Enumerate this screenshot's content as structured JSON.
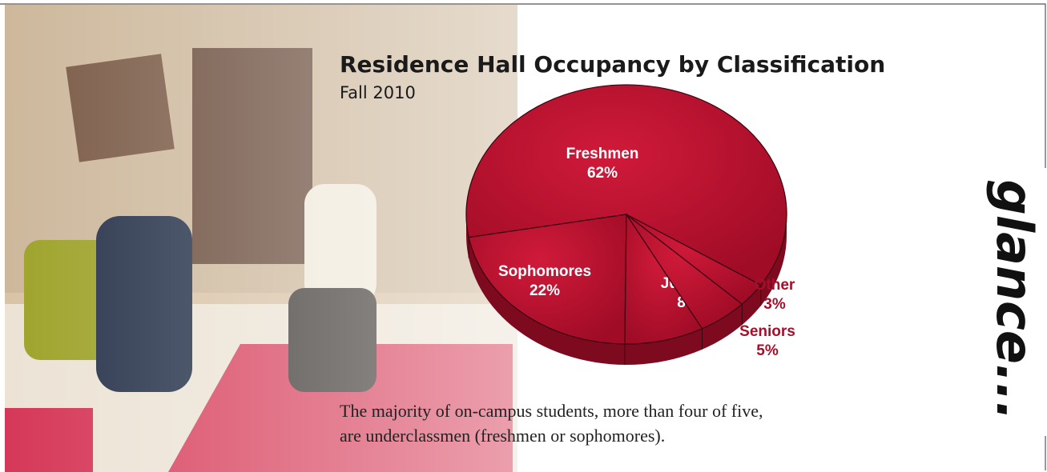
{
  "chart_data": {
    "type": "pie",
    "title": "Residence Hall Occupancy by Classification",
    "subtitle": "Fall 2010",
    "categories": [
      "Freshmen",
      "Sophomores",
      "Juniors",
      "Seniors",
      "Other"
    ],
    "values": [
      62,
      22,
      8,
      5,
      3
    ],
    "value_labels": [
      "62%",
      "22%",
      "8%",
      "5%",
      "3%"
    ],
    "color": "#b3112d"
  },
  "caption": [
    "The majority of on-campus students, more than four of five,",
    "are underclassmen (freshmen or sophomores)."
  ],
  "side_text": "glance..."
}
